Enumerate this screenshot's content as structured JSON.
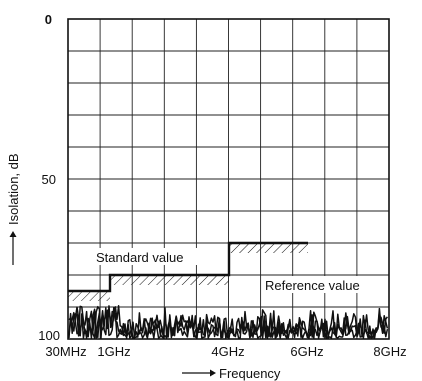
{
  "chart_data": {
    "type": "line",
    "title": "",
    "xlabel": "Frequency",
    "ylabel": "Isolation, dB",
    "x_tick_labels": [
      "30MHz",
      "1GHz",
      "4GHz",
      "6GHz",
      "8GHz"
    ],
    "y_tick_labels": [
      "0",
      "50",
      "100"
    ],
    "ylim": [
      0,
      100
    ],
    "y_inverted": true,
    "grid": true,
    "annotations": [
      "Standard value",
      "Reference value"
    ],
    "series": [
      {
        "name": "Standard value",
        "style": "step-limit",
        "points": [
          {
            "x": "30MHz",
            "y": 85
          },
          {
            "x": "1GHz",
            "y": 85
          },
          {
            "x": "1GHz",
            "y": 80
          },
          {
            "x": "4GHz",
            "y": 80
          },
          {
            "x": "4GHz",
            "y": 70
          },
          {
            "x": "6GHz",
            "y": 70
          }
        ]
      },
      {
        "name": "Reference value",
        "style": "noise-trace",
        "level_range": [
          90,
          100
        ]
      }
    ]
  }
}
